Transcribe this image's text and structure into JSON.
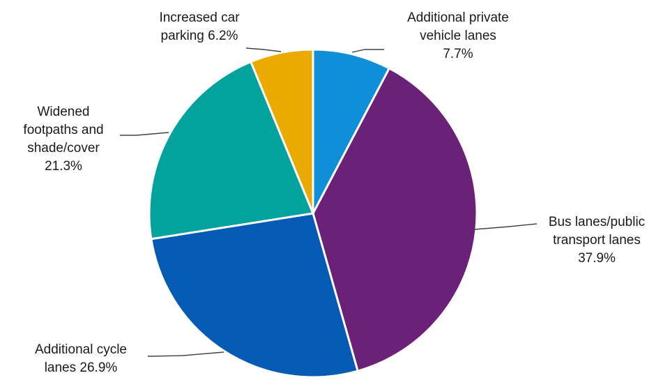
{
  "chart_data": {
    "type": "pie",
    "title": "",
    "slices": [
      {
        "label_lines": [
          "Additional private",
          "vehicle lanes",
          "7.7%"
        ],
        "value": 7.7,
        "color": "#0F8FD8"
      },
      {
        "label_lines": [
          "Bus lanes/public",
          "transport lanes",
          "37.9%"
        ],
        "value": 37.9,
        "color": "#6B2177"
      },
      {
        "label_lines": [
          "Additional cycle",
          "lanes 26.9%"
        ],
        "value": 26.9,
        "color": "#055BB4"
      },
      {
        "label_lines": [
          "Widened",
          "footpaths and",
          "shade/cover",
          "21.3%"
        ],
        "value": 21.3,
        "color": "#04A29C"
      },
      {
        "label_lines": [
          "Increased car",
          "parking 6.2%"
        ],
        "value": 6.2,
        "color": "#EAAA00"
      }
    ],
    "start_angle_deg": 0,
    "direction": "clockwise",
    "legend": "none",
    "data_labels": "outside with leader lines"
  }
}
